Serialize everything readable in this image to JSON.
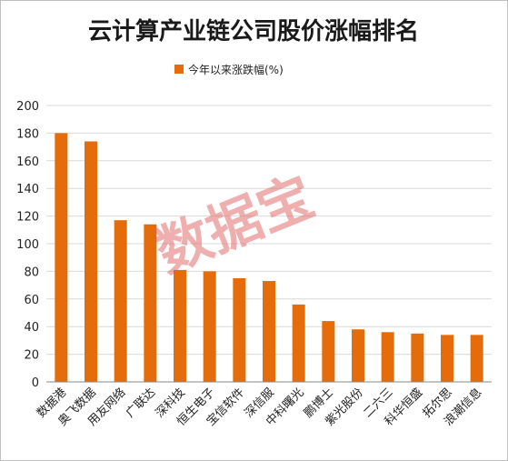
{
  "chart_data": {
    "type": "bar",
    "title": "云计算产业链公司股价涨幅排名",
    "watermark": "数据宝",
    "series": [
      {
        "name": "今年以来涨跌幅(%)",
        "color": "#E46C0A",
        "values": [
          180,
          174,
          117,
          114,
          81,
          80,
          75,
          73,
          56,
          44,
          38,
          36,
          35,
          34,
          34
        ]
      }
    ],
    "categories": [
      "数据港",
      "奥飞数据",
      "用友网络",
      "广联达",
      "深科技",
      "恒生电子",
      "宝信软件",
      "深信服",
      "中科曙光",
      "鹏博士",
      "紫光股份",
      "二六三",
      "科华恒盛",
      "拓尔思",
      "浪潮信息"
    ],
    "yticks": [
      "0",
      "20",
      "40",
      "60",
      "80",
      "100",
      "120",
      "140",
      "160",
      "180",
      "200"
    ],
    "ylim": [
      0,
      200
    ],
    "grid": true,
    "legend_position": "top"
  }
}
